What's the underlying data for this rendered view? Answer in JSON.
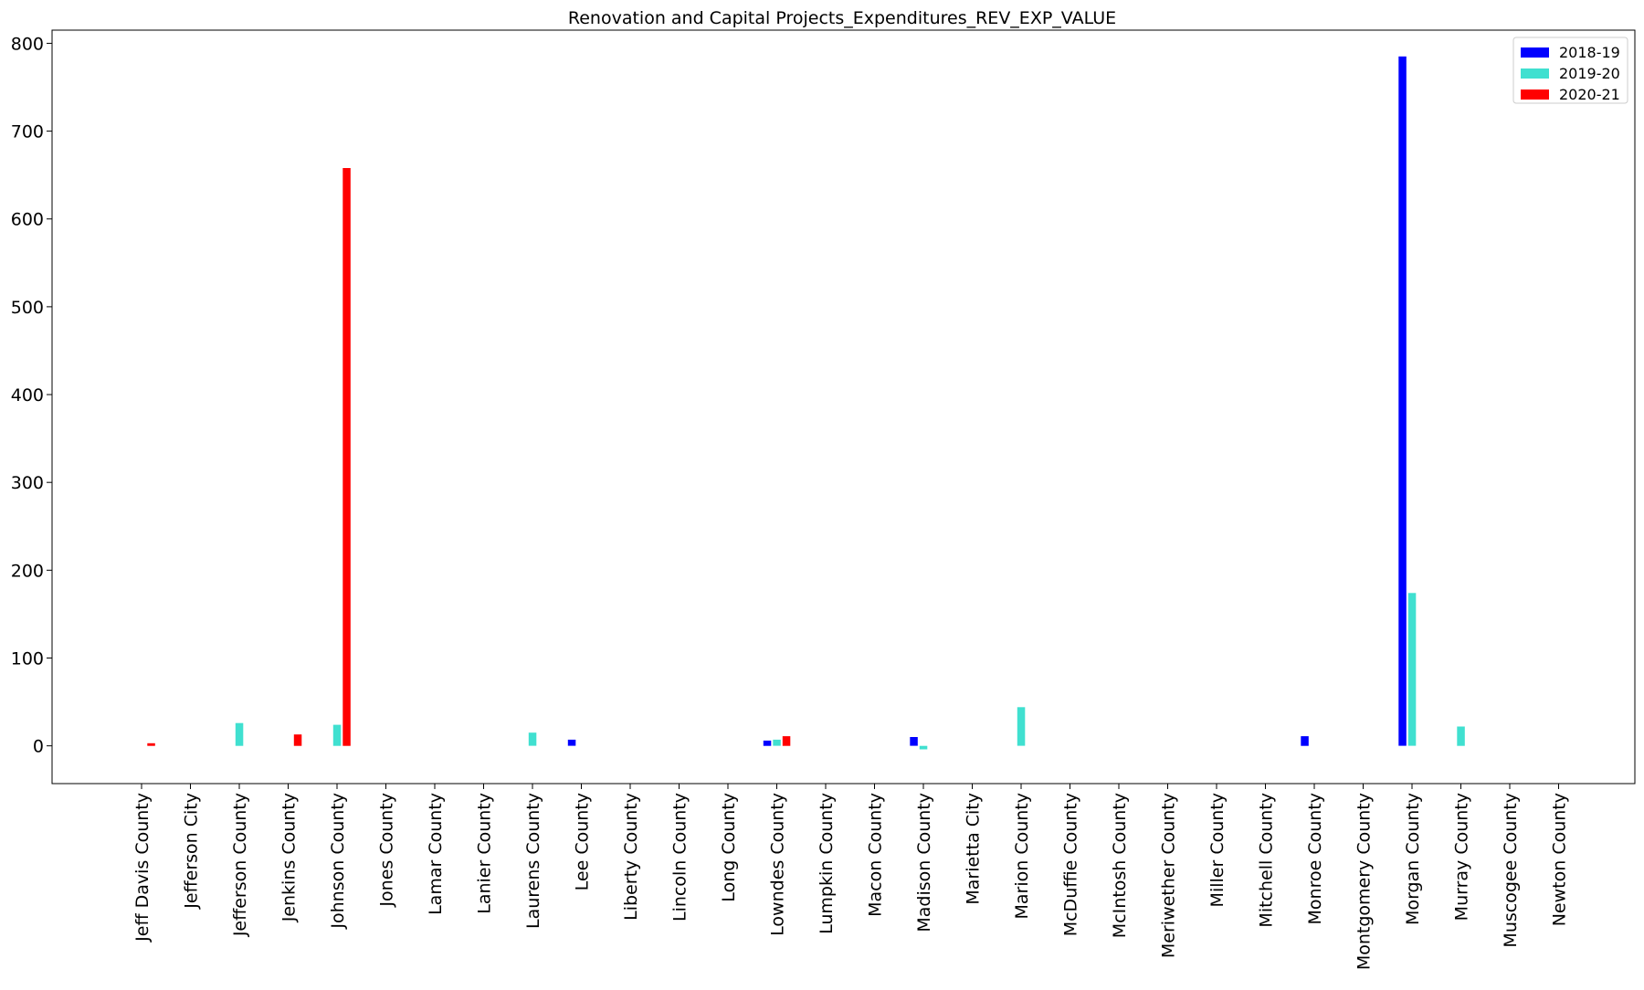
{
  "chart_data": {
    "type": "bar",
    "title": "Renovation and Capital Projects_Expenditures_REV_EXP_VALUE",
    "xlabel": "",
    "ylabel": "",
    "ylim": [
      -43,
      815
    ],
    "yticks": [
      0,
      100,
      200,
      300,
      400,
      500,
      600,
      700,
      800
    ],
    "grid": false,
    "legend_position": "top-right",
    "categories": [
      "Jeff Davis County",
      "Jefferson City",
      "Jefferson County",
      "Jenkins County",
      "Johnson County",
      "Jones County",
      "Lamar County",
      "Lanier County",
      "Laurens County",
      "Lee County",
      "Liberty County",
      "Lincoln County",
      "Long County",
      "Lowndes County",
      "Lumpkin County",
      "Macon County",
      "Madison County",
      "Marietta City",
      "Marion County",
      "McDuffie County",
      "McIntosh County",
      "Meriwether County",
      "Miller County",
      "Mitchell County",
      "Monroe County",
      "Montgomery County",
      "Morgan County",
      "Murray County",
      "Muscogee County",
      "Newton County"
    ],
    "series": [
      {
        "name": "2018-19",
        "color": "#0000ff",
        "values": [
          0,
          0,
          0,
          0,
          0,
          0,
          0,
          0,
          0,
          7,
          0,
          0,
          0,
          6,
          0,
          0,
          10,
          0,
          0,
          0,
          0,
          0,
          0,
          0,
          11,
          0,
          785,
          0,
          0,
          0
        ]
      },
      {
        "name": "2019-20",
        "color": "#40e0d0",
        "values": [
          0,
          0,
          26,
          0,
          24,
          0,
          0,
          0,
          15,
          0,
          0,
          0,
          0,
          7,
          0,
          0,
          -4,
          0,
          44,
          0,
          0,
          0,
          0,
          0,
          0,
          0,
          174,
          22,
          0,
          0
        ]
      },
      {
        "name": "2020-21",
        "color": "#ff0000",
        "values": [
          3,
          0,
          0,
          13,
          658,
          0,
          0,
          0,
          0,
          0,
          0,
          0,
          0,
          11,
          0,
          0,
          0,
          0,
          0,
          0,
          0,
          0,
          0,
          0,
          0,
          0,
          0,
          0,
          0,
          0
        ]
      }
    ]
  }
}
